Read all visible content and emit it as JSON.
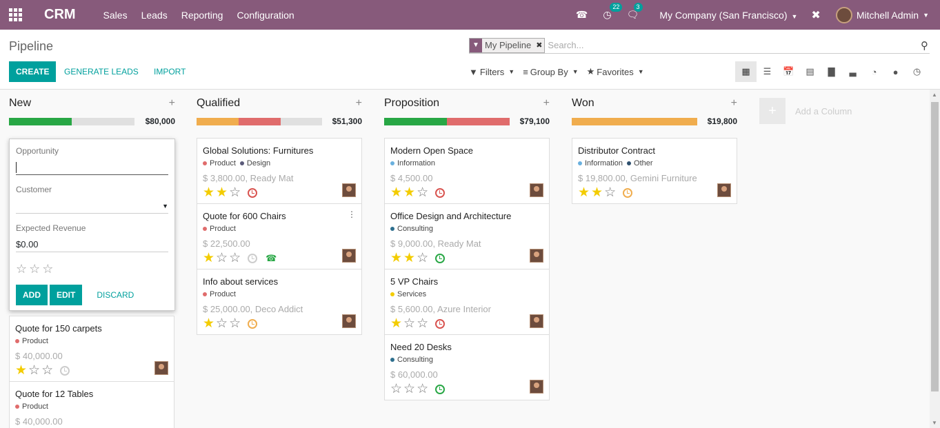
{
  "navbar": {
    "brand": "CRM",
    "menu": [
      "Sales",
      "Leads",
      "Reporting",
      "Configuration"
    ],
    "activity_count": "22",
    "message_count": "3",
    "company": "My Company (San Francisco)",
    "user": "Mitchell Admin"
  },
  "control": {
    "title": "Pipeline",
    "facet": "My Pipeline",
    "search_placeholder": "Search...",
    "create": "CREATE",
    "generate": "GENERATE LEADS",
    "import": "IMPORT",
    "filters": "Filters",
    "group_by": "Group By",
    "favorites": "Favorites"
  },
  "quick_create": {
    "opportunity_label": "Opportunity",
    "customer_label": "Customer",
    "revenue_label": "Expected Revenue",
    "revenue_value": "$0.00",
    "add": "ADD",
    "edit": "EDIT",
    "discard": "DISCARD"
  },
  "add_column": "Add a Column",
  "columns": [
    {
      "name": "New",
      "total": "$80,000",
      "cards": [
        {
          "title": "Quote for 150 carpets",
          "tags": [
            "Product"
          ],
          "amount": "$ 40,000.00"
        },
        {
          "title": "Quote for 12 Tables",
          "tags": [
            "Product"
          ],
          "amount": "$ 40,000.00"
        }
      ]
    },
    {
      "name": "Qualified",
      "total": "$51,300",
      "cards": [
        {
          "title": "Global Solutions: Furnitures",
          "tags": [
            "Product",
            "Design"
          ],
          "amount": "$ 3,800.00, Ready Mat"
        },
        {
          "title": "Quote for 600 Chairs",
          "tags": [
            "Product"
          ],
          "amount": "$ 22,500.00"
        },
        {
          "title": "Info about services",
          "tags": [
            "Product"
          ],
          "amount": "$ 25,000.00, Deco Addict"
        }
      ]
    },
    {
      "name": "Proposition",
      "total": "$79,100",
      "cards": [
        {
          "title": "Modern Open Space",
          "tags": [
            "Information"
          ],
          "amount": "$ 4,500.00"
        },
        {
          "title": "Office Design and Architecture",
          "tags": [
            "Consulting"
          ],
          "amount": "$ 9,000.00, Ready Mat"
        },
        {
          "title": "5 VP Chairs",
          "tags": [
            "Services"
          ],
          "amount": "$ 5,600.00, Azure Interior"
        },
        {
          "title": "Need 20 Desks",
          "tags": [
            "Consulting"
          ],
          "amount": "$ 60,000.00"
        }
      ]
    },
    {
      "name": "Won",
      "total": "$19,800",
      "cards": [
        {
          "title": "Distributor Contract",
          "tags": [
            "Information",
            "Other"
          ],
          "amount": "$ 19,800.00, Gemini Furniture"
        }
      ]
    }
  ],
  "colors": {
    "brand": "#875a7b",
    "accent": "#00a09d",
    "progress_green": "#28a745",
    "progress_red": "#e06c6c",
    "progress_orange": "#f0ad4e",
    "tag_product": "#e06c6c",
    "tag_design": "#5b5b7a",
    "tag_information": "#6ab0de",
    "tag_consulting": "#2e6f8e",
    "tag_services": "#f3cc00",
    "tag_other": "#2e4f6e"
  },
  "icons": [
    "apps-icon",
    "phone-icon",
    "activity-icon",
    "chat-icon",
    "debug-icon",
    "search-icon",
    "filter-icon",
    "kanban-icon",
    "list-icon",
    "calendar-icon",
    "pivot-icon",
    "graph-icon",
    "cohort-icon",
    "dashboard-icon",
    "map-icon",
    "activity-view-icon"
  ]
}
